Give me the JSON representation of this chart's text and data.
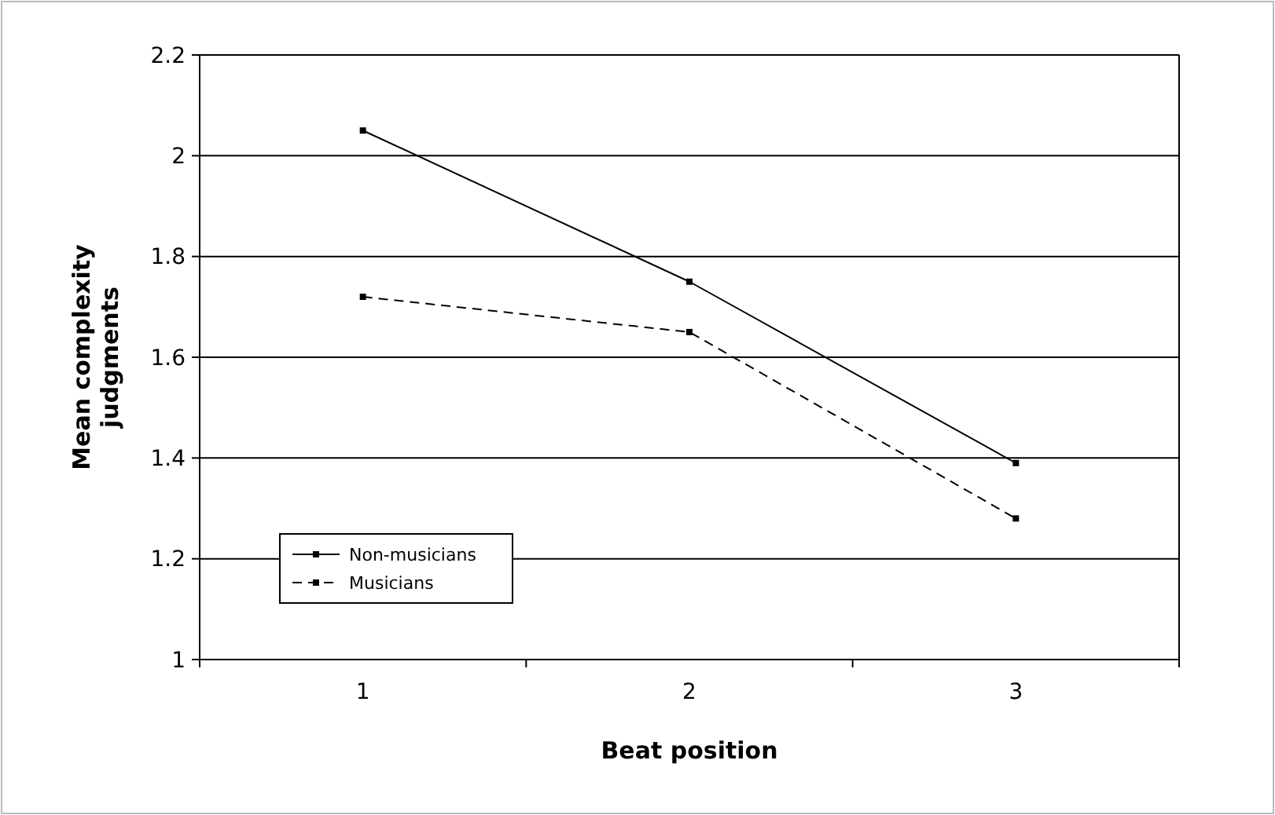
{
  "chart_data": {
    "type": "line",
    "xlabel": "Beat position",
    "ylabel": "Mean complexity judgments",
    "categories": [
      "1",
      "2",
      "3"
    ],
    "series": [
      {
        "name": "Non-musicians",
        "color": "#000000",
        "values": [
          2.05,
          1.75,
          1.39
        ],
        "line_style": "solid"
      },
      {
        "name": "Musicians",
        "color": "#000000",
        "values": [
          1.72,
          1.65,
          1.28
        ],
        "line_style": "dashed"
      }
    ],
    "ylim": [
      1,
      2.2
    ],
    "yticks": [
      1,
      1.2,
      1.4,
      1.6,
      1.8,
      2,
      2.2
    ],
    "grid": "y",
    "legend": "bottom left",
    "marker": "square"
  }
}
